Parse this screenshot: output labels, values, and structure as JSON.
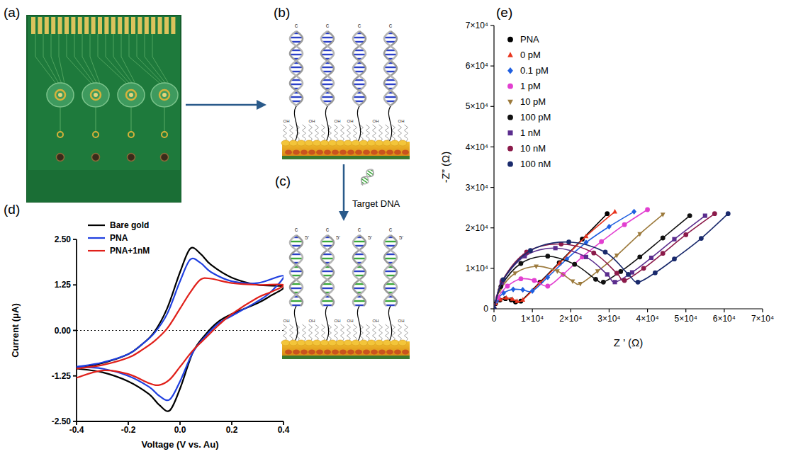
{
  "figure": {
    "panel_labels": [
      "(a)",
      "(b)",
      "(c)",
      "(d)",
      "(e)"
    ],
    "annotations": [
      "Target DNA"
    ],
    "schematic_labels": {
      "strand_top": "c",
      "strand_end": "5'",
      "monolayer": "OH"
    }
  },
  "chart_data": [
    {
      "type": "line",
      "x_label": "Voltage (V vs. Au)",
      "y_label": "Current (μA)",
      "xlim": [
        -0.4,
        0.4
      ],
      "ylim": [
        -2.5,
        2.5
      ],
      "xticks": [
        -0.4,
        -0.2,
        {
          "value": 0,
          "label": "0.0"
        },
        0.2,
        0.4
      ],
      "yticks": [
        {
          "value": -2.5,
          "label": "-2.50"
        },
        {
          "value": -1.25,
          "label": "-1.25"
        },
        {
          "value": 0,
          "label": "0.00"
        },
        {
          "value": 1.25,
          "label": "1.25"
        },
        {
          "value": 2.5,
          "label": "2.50"
        }
      ],
      "grid": false,
      "legend": "top-left",
      "reference_lines": [
        {
          "y": 0,
          "line_style": "dotted"
        }
      ],
      "series": [
        {
          "name": "Bare gold",
          "color": "#000000",
          "line_style": "solid",
          "x": [
            -0.4,
            -0.3,
            -0.2,
            -0.15,
            -0.1,
            -0.05,
            0.0,
            0.04,
            0.08,
            0.12,
            0.2,
            0.3,
            0.4,
            0.35,
            0.3,
            0.2,
            0.15,
            0.1,
            0.05,
            0.0,
            -0.04,
            -0.08,
            -0.12,
            -0.2,
            -0.3,
            -0.4
          ],
          "values": [
            -1.05,
            -0.9,
            -0.65,
            -0.4,
            -0.05,
            0.6,
            1.6,
            2.25,
            2.1,
            1.8,
            1.45,
            1.25,
            1.2,
            0.95,
            0.75,
            0.45,
            0.25,
            -0.1,
            -0.6,
            -1.6,
            -2.2,
            -2.05,
            -1.75,
            -1.4,
            -1.15,
            -1.05
          ]
        },
        {
          "name": "PNA",
          "color": "#1f3fe0",
          "line_style": "solid",
          "x": [
            -0.4,
            -0.3,
            -0.2,
            -0.15,
            -0.1,
            -0.05,
            0.0,
            0.04,
            0.08,
            0.12,
            0.2,
            0.3,
            0.4,
            0.35,
            0.3,
            0.2,
            0.15,
            0.1,
            0.05,
            0.0,
            -0.04,
            -0.08,
            -0.12,
            -0.2,
            -0.3,
            -0.4
          ],
          "values": [
            -1.0,
            -0.88,
            -0.65,
            -0.4,
            -0.08,
            0.45,
            1.35,
            1.95,
            1.85,
            1.6,
            1.35,
            1.3,
            1.5,
            1.05,
            0.8,
            0.4,
            0.2,
            -0.15,
            -0.6,
            -1.4,
            -1.9,
            -1.8,
            -1.55,
            -1.25,
            -1.05,
            -1.0
          ]
        },
        {
          "name": "PNA+1nM",
          "color": "#e0201a",
          "line_style": "solid",
          "x": [
            -0.4,
            -0.3,
            -0.2,
            -0.15,
            -0.1,
            -0.05,
            0.0,
            0.04,
            0.08,
            0.12,
            0.2,
            0.3,
            0.4,
            0.35,
            0.3,
            0.2,
            0.15,
            0.1,
            0.05,
            0.0,
            -0.04,
            -0.08,
            -0.12,
            -0.2,
            -0.3,
            -0.4
          ],
          "values": [
            -1.05,
            -0.95,
            -0.75,
            -0.55,
            -0.3,
            0.05,
            0.6,
            1.05,
            1.4,
            1.42,
            1.3,
            1.25,
            1.25,
            1.05,
            0.9,
            0.45,
            0.15,
            -0.2,
            -0.55,
            -1.0,
            -1.35,
            -1.5,
            -1.45,
            -1.2,
            -1.1,
            -1.3
          ]
        }
      ]
    },
    {
      "type": "scatter",
      "x_label": "Z ’ (Ω)",
      "y_label": "-Z” (Ω)",
      "xlim": [
        0,
        70000
      ],
      "ylim": [
        0,
        70000
      ],
      "xticks": [
        0,
        {
          "value": 10000,
          "label": "1×10⁴"
        },
        {
          "value": 20000,
          "label": "2×10⁴"
        },
        {
          "value": 30000,
          "label": "3×10⁴"
        },
        {
          "value": 40000,
          "label": "4×10⁴"
        },
        {
          "value": 50000,
          "label": "5×10⁴"
        },
        {
          "value": 60000,
          "label": "6×10⁴"
        },
        {
          "value": 70000,
          "label": "7×10⁴"
        }
      ],
      "yticks": [
        0,
        {
          "value": 10000,
          "label": "1×10⁴"
        },
        {
          "value": 20000,
          "label": "2×10⁴"
        },
        {
          "value": 30000,
          "label": "3×10⁴"
        },
        {
          "value": 40000,
          "label": "4×10⁴"
        },
        {
          "value": 50000,
          "label": "5×10⁴"
        },
        {
          "value": 60000,
          "label": "6×10⁴"
        },
        {
          "value": 70000,
          "label": "7×10⁴"
        }
      ],
      "grid": false,
      "legend": "top-left",
      "series": [
        {
          "name": "PNA",
          "color": "#000000",
          "marker": "circle",
          "line_style": "solid",
          "x": [
            0,
            400,
            1500,
            3000,
            4500,
            5600,
            7000,
            12000,
            17000,
            23000,
            29500
          ],
          "values": [
            0,
            1250,
            2150,
            2500,
            2200,
            1700,
            1900,
            6600,
            11400,
            17200,
            23500
          ]
        },
        {
          "name": "0 pM",
          "color": "#e8351e",
          "marker": "triangle",
          "line_style": "solid",
          "x": [
            0,
            450,
            1600,
            3200,
            4800,
            6000,
            7500,
            12000,
            17000,
            24000,
            31500
          ],
          "values": [
            0,
            1300,
            2300,
            2700,
            2400,
            1900,
            2200,
            6400,
            11200,
            17900,
            24000
          ]
        },
        {
          "name": "0.1 pM",
          "color": "#1f5fe0",
          "marker": "diamond",
          "line_style": "solid",
          "x": [
            0,
            700,
            2500,
            5000,
            7500,
            10000,
            14000,
            19000,
            24000,
            30000,
            36500
          ],
          "values": [
            0,
            2000,
            3900,
            4800,
            4700,
            4400,
            7800,
            12300,
            16400,
            20300,
            24000
          ]
        },
        {
          "name": "1 pM",
          "color": "#e23fd0",
          "marker": "circle",
          "line_style": "solid",
          "x": [
            0,
            1000,
            3500,
            7000,
            10500,
            14000,
            18000,
            23000,
            28000,
            34000,
            40000
          ],
          "values": [
            0,
            2800,
            5600,
            7400,
            7000,
            5600,
            8500,
            12800,
            16600,
            20800,
            24500
          ]
        },
        {
          "name": "10 pM",
          "color": "#9c7a3c",
          "marker": "triangle-down",
          "line_style": "solid",
          "x": [
            0,
            1500,
            5500,
            11000,
            16500,
            20500,
            22500,
            27000,
            32000,
            38000,
            44000
          ],
          "values": [
            0,
            4500,
            8800,
            10500,
            9300,
            6800,
            6200,
            9300,
            13200,
            18500,
            23300
          ]
        },
        {
          "name": "100 pM",
          "color": "#111111",
          "marker": "circle",
          "line_style": "solid",
          "x": [
            0,
            1800,
            7000,
            14000,
            21000,
            26500,
            28500,
            33000,
            38000,
            44000,
            51000
          ],
          "values": [
            0,
            5500,
            11200,
            13000,
            11000,
            7300,
            6600,
            9200,
            12800,
            17500,
            23000
          ]
        },
        {
          "name": "1 nM",
          "color": "#5b2d8e",
          "marker": "square",
          "line_style": "solid",
          "x": [
            0,
            2000,
            8000,
            16000,
            24000,
            29500,
            31500,
            36000,
            41000,
            47000,
            55000
          ],
          "values": [
            0,
            6500,
            13000,
            15000,
            12800,
            8500,
            6600,
            9000,
            12600,
            17200,
            23000
          ]
        },
        {
          "name": "10 nM",
          "color": "#8b1a4a",
          "marker": "circle",
          "line_style": "solid",
          "x": [
            0,
            2200,
            8500,
            17500,
            26000,
            32000,
            34000,
            39000,
            44000,
            50000,
            57500
          ],
          "values": [
            0,
            7000,
            14000,
            16000,
            13800,
            8800,
            7000,
            10000,
            13700,
            18300,
            23500
          ]
        },
        {
          "name": "100 nM",
          "color": "#1a2a6c",
          "marker": "circle",
          "line_style": "solid",
          "x": [
            0,
            2400,
            9500,
            19500,
            29000,
            35000,
            37500,
            42000,
            47000,
            54000,
            61000
          ],
          "values": [
            0,
            7200,
            14400,
            16500,
            14000,
            8500,
            6600,
            8900,
            12300,
            17400,
            23500
          ]
        }
      ]
    }
  ]
}
